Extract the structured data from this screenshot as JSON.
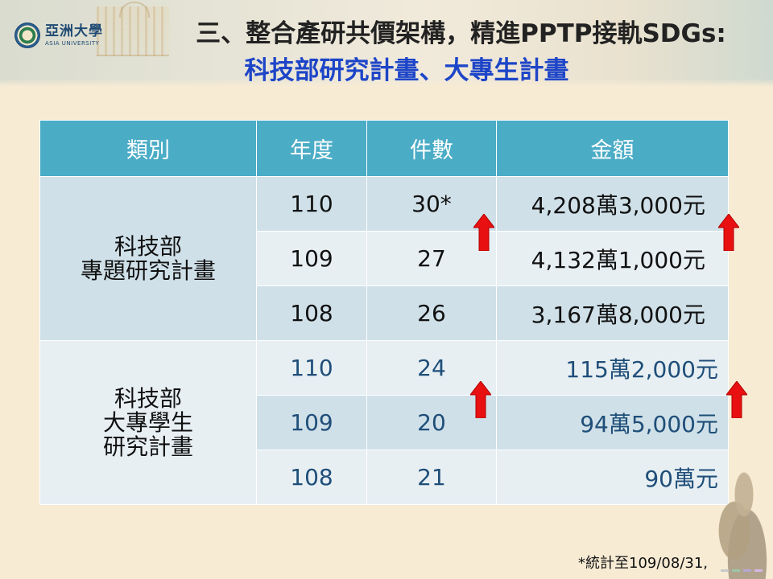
{
  "logo": {
    "name_cn": "亞洲大學",
    "name_en": "ASIA UNIVERSITY"
  },
  "title_line1": "三、整合產研共價架構，精進PPTP接軌SDGs:",
  "title_line2": "科技部研究計畫、大專生計畫",
  "table": {
    "headers": [
      "類別",
      "年度",
      "件數",
      "金額"
    ],
    "group1": {
      "category_lines": [
        "科技部",
        "專題研究計畫"
      ],
      "rows": [
        {
          "year": "110",
          "count": "30*",
          "amount": "4,208萬3,000元"
        },
        {
          "year": "109",
          "count": "27",
          "amount": "4,132萬1,000元"
        },
        {
          "year": "108",
          "count": "26",
          "amount": "3,167萬8,000元"
        }
      ]
    },
    "group2": {
      "category_lines": [
        "科技部",
        "大專學生",
        "研究計畫"
      ],
      "rows": [
        {
          "year": "110",
          "count": "24",
          "amount": "115萬2,000元"
        },
        {
          "year": "109",
          "count": "20",
          "amount": "94萬5,000元"
        },
        {
          "year": "108",
          "count": "21",
          "amount": "90萬元"
        }
      ]
    }
  },
  "indicators": {
    "increase_icon": "red-up-arrow-icon",
    "color": "#e81010"
  },
  "footnote": "*統計至109/08/31,",
  "colors": {
    "header_bg": "#4bacc6",
    "title_blue": "#1d45c8",
    "group2_text": "#1f4e79",
    "background": "#f7ebd4"
  }
}
